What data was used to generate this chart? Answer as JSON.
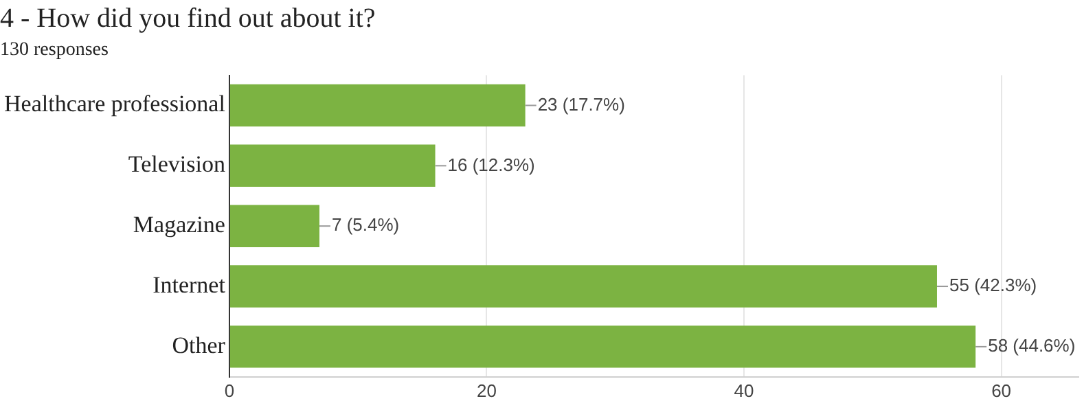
{
  "chart_data": {
    "type": "bar",
    "orientation": "horizontal",
    "title": "4 - How did you find out about it?",
    "subtitle": "130 responses",
    "categories": [
      "Healthcare professional",
      "Television",
      "Magazine",
      "Internet",
      "Other"
    ],
    "values": [
      23,
      16,
      7,
      55,
      58
    ],
    "value_labels": [
      "23 (17.7%)",
      "16 (12.3%)",
      "7 (5.4%)",
      "55 (42.3%)",
      "58 (44.6%)"
    ],
    "color": "#7cb342",
    "xlim": [
      0,
      66
    ],
    "xticks": [
      0,
      20,
      40,
      60
    ],
    "grid": "x",
    "legend": false
  }
}
